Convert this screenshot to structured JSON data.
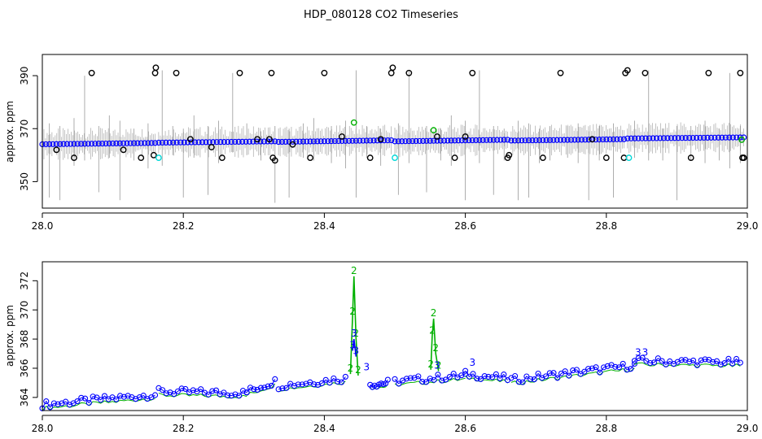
{
  "title": "HDP_080128  CO2 Timeseries",
  "colors": {
    "black": "#000000",
    "blue": "#0000ff",
    "green": "#00b000",
    "cyan": "#00d8d8",
    "grey": "#999999"
  },
  "chart_data": [
    {
      "type": "scatter",
      "ylabel": "approx. ppm",
      "xlim": [
        28.0,
        29.0
      ],
      "ylim": [
        340,
        398
      ],
      "xticks": [
        28.0,
        28.2,
        28.4,
        28.6,
        28.8,
        29.0
      ],
      "xtick_labels": [
        "28.0",
        "28.2",
        "28.4",
        "28.6",
        "28.8",
        "29.0"
      ],
      "yticks": [
        350,
        370,
        390
      ],
      "ytick_labels": [
        "350",
        "370",
        "390"
      ],
      "grid": false,
      "baseline_segments": [
        {
          "x": [
            28.0,
            28.16
          ],
          "y": [
            364.1,
            364.6
          ]
        },
        {
          "x": [
            28.165,
            28.33
          ],
          "y": [
            364.7,
            365.2
          ]
        },
        {
          "x": [
            28.335,
            28.495
          ],
          "y": [
            365.0,
            365.6
          ]
        },
        {
          "x": [
            28.5,
            28.66
          ],
          "y": [
            365.2,
            365.8
          ]
        },
        {
          "x": [
            28.665,
            28.825
          ],
          "y": [
            365.5,
            366.0
          ]
        },
        {
          "x": [
            28.83,
            28.995
          ],
          "y": [
            366.3,
            366.7
          ]
        }
      ],
      "outliers_black": {
        "x": [
          28.02,
          28.045,
          28.07,
          28.115,
          28.14,
          28.158,
          28.16,
          28.161,
          28.19,
          28.21,
          28.24,
          28.255,
          28.28,
          28.305,
          28.322,
          28.325,
          28.327,
          28.33,
          28.355,
          28.38,
          28.4,
          28.425,
          28.465,
          28.48,
          28.495,
          28.497,
          28.52,
          28.56,
          28.585,
          28.6,
          28.61,
          28.66,
          28.662,
          28.71,
          28.735,
          28.78,
          28.8,
          28.825,
          28.827,
          28.83,
          28.855,
          28.92,
          28.945,
          28.99,
          28.993,
          28.995
        ],
        "y": [
          362,
          359,
          391,
          362,
          359,
          360,
          391,
          393,
          391,
          366,
          363,
          359,
          391,
          366,
          366,
          391,
          359,
          358,
          364,
          359,
          391,
          367,
          359,
          366,
          391,
          393,
          391,
          367,
          359,
          367,
          391,
          359,
          360,
          359,
          391,
          366,
          359,
          359,
          391,
          392,
          391,
          359,
          391,
          391,
          359,
          359
        ]
      },
      "outliers_green": {
        "x": [
          28.442,
          28.555,
          28.992
        ],
        "y": [
          372.3,
          369.4,
          365.8
        ]
      },
      "outliers_cyan": {
        "x": [
          28.165,
          28.5,
          28.832
        ],
        "y": [
          359,
          359,
          359
        ]
      },
      "spikes": {
        "x": [
          28.01,
          28.025,
          28.045,
          28.06,
          28.08,
          28.095,
          28.11,
          28.13,
          28.15,
          28.17,
          28.185,
          28.2,
          28.215,
          28.235,
          28.25,
          28.27,
          28.29,
          28.31,
          28.33,
          28.35,
          28.37,
          28.385,
          28.41,
          28.43,
          28.445,
          28.46,
          28.48,
          28.505,
          28.52,
          28.545,
          28.565,
          28.58,
          28.6,
          28.62,
          28.64,
          28.655,
          28.675,
          28.69,
          28.705,
          28.72,
          28.745,
          28.76,
          28.775,
          28.79,
          28.81,
          28.84,
          28.86,
          28.88,
          28.9,
          28.92,
          28.94,
          28.96,
          28.975,
          28.99
        ],
        "low": [
          344,
          343,
          356,
          358,
          346,
          359,
          343,
          358,
          355,
          356,
          360,
          344,
          359,
          345,
          357,
          361,
          360,
          358,
          342,
          344,
          359,
          358,
          357,
          355,
          344,
          359,
          356,
          345,
          357,
          346,
          358,
          356,
          343,
          357,
          345,
          358,
          343,
          344,
          357,
          358,
          359,
          357,
          343,
          358,
          344,
          359,
          358,
          358,
          343,
          358,
          357,
          358,
          355,
          357
        ],
        "high": [
          372,
          371,
          374,
          390,
          371,
          375,
          373,
          370,
          372,
          392,
          371,
          370,
          375,
          371,
          373,
          391,
          372,
          369,
          371,
          370,
          372,
          374,
          371,
          373,
          392,
          371,
          370,
          372,
          392,
          371,
          370,
          375,
          373,
          392,
          371,
          370,
          373,
          372,
          370,
          371,
          371,
          372,
          369,
          371,
          372,
          373,
          392,
          370,
          371,
          371,
          373,
          370,
          391,
          371
        ]
      }
    },
    {
      "type": "scatter",
      "ylabel": "approx. ppm",
      "xlim": [
        28.0,
        29.0
      ],
      "ylim": [
        363.1,
        373.3
      ],
      "xticks": [
        28.0,
        28.2,
        28.4,
        28.6,
        28.8,
        29.0
      ],
      "xtick_labels": [
        "28.0",
        "28.2",
        "28.4",
        "28.6",
        "28.8",
        "29.0"
      ],
      "yticks": [
        364,
        366,
        368,
        370,
        372
      ],
      "ytick_labels": [
        "364",
        "366",
        "368",
        "370",
        "372"
      ],
      "grid": false,
      "marker_label_green": "2",
      "marker_label_blue": "3",
      "baseline_segments": [
        {
          "x": [
            28.0,
            28.16
          ],
          "y": [
            363.5,
            364.2
          ]
        },
        {
          "x": [
            28.165,
            28.29
          ],
          "y": [
            364.4,
            364.3
          ]
        },
        {
          "x": [
            28.29,
            28.33
          ],
          "y": [
            364.4,
            365.1
          ]
        },
        {
          "x": [
            28.335,
            28.43
          ],
          "y": [
            364.8,
            365.3
          ]
        },
        {
          "x": [
            28.465,
            28.49
          ],
          "y": [
            364.9,
            365.0
          ]
        },
        {
          "x": [
            28.5,
            28.6
          ],
          "y": [
            365.1,
            365.5
          ]
        },
        {
          "x": [
            28.6,
            28.66
          ],
          "y": [
            365.6,
            365.3
          ]
        },
        {
          "x": [
            28.665,
            28.84
          ],
          "y": [
            365.2,
            366.2
          ]
        },
        {
          "x": [
            28.84,
            28.99
          ],
          "y": [
            366.5,
            366.4
          ]
        }
      ],
      "series_green_peaks": {
        "x": [
          28.437,
          28.44,
          28.442,
          28.445,
          28.448,
          28.551,
          28.553,
          28.555,
          28.558,
          28.562
        ],
        "y": [
          365.6,
          369.5,
          372.3,
          368.0,
          365.5,
          365.9,
          368.2,
          369.4,
          367.0,
          365.8
        ]
      },
      "series_blue_peaks": {
        "x": [
          28.44,
          28.442,
          28.445,
          28.46,
          28.56,
          28.61,
          28.845,
          28.855
        ],
        "y": [
          367.2,
          368.0,
          366.8,
          365.7,
          365.8,
          366.0,
          366.7,
          366.7
        ]
      }
    }
  ]
}
